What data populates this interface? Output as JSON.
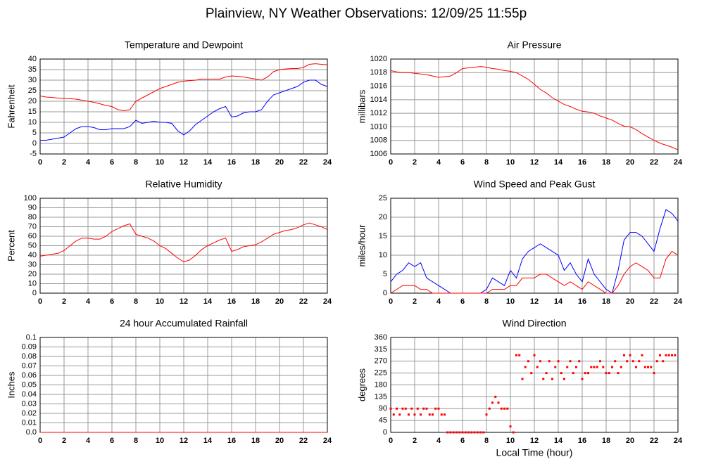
{
  "title": "Plainview, NY Weather Observations: 12/09/25 11:55p",
  "chart_data": [
    {
      "type": "line",
      "title": "Temperature and Dewpoint",
      "ylabel": "Fahrenheit",
      "x": [
        0,
        0.5,
        1,
        1.5,
        2,
        2.5,
        3,
        3.5,
        4,
        4.5,
        5,
        5.5,
        6,
        6.5,
        7,
        7.5,
        8,
        8.5,
        9,
        9.5,
        10,
        10.5,
        11,
        11.5,
        12,
        12.5,
        13,
        13.5,
        14,
        14.5,
        15,
        15.5,
        16,
        16.5,
        17,
        17.5,
        18,
        18.5,
        19,
        19.5,
        20,
        20.5,
        21,
        21.5,
        22,
        22.5,
        23,
        23.5,
        24
      ],
      "series": [
        {
          "color": "#ff0000",
          "values": [
            22.5,
            22,
            21.8,
            21.5,
            21.3,
            21.2,
            21,
            20.5,
            20,
            19.5,
            18.8,
            18,
            17.5,
            16,
            15.5,
            16,
            20,
            21.5,
            23,
            24.5,
            26,
            27,
            28,
            29,
            29.5,
            29.8,
            30,
            30.5,
            30.5,
            30.5,
            30.5,
            31.5,
            32,
            31.8,
            31.5,
            31,
            30.5,
            30,
            31.5,
            34,
            35,
            35.3,
            35.5,
            35.5,
            36,
            37.5,
            37.8,
            37.5,
            37.3
          ]
        },
        {
          "color": "#0000ff",
          "values": [
            1.5,
            1.5,
            2,
            2.5,
            3,
            5,
            7,
            8,
            8,
            7.5,
            6.5,
            6.5,
            7,
            7,
            7,
            8,
            11,
            9.5,
            10,
            10.5,
            10,
            10,
            9.5,
            6,
            4,
            6,
            9,
            11,
            13,
            15,
            16.5,
            17.5,
            12.5,
            13,
            14.5,
            15,
            15,
            16,
            20,
            23,
            24,
            25,
            26,
            27,
            29,
            30,
            30,
            28,
            27
          ]
        }
      ],
      "xlim": [
        0,
        24
      ],
      "xticks": [
        0,
        2,
        4,
        6,
        8,
        10,
        12,
        14,
        16,
        18,
        20,
        22,
        24
      ],
      "ylim": [
        -5,
        40
      ],
      "yticks": [
        -5,
        0,
        5,
        10,
        15,
        20,
        25,
        30,
        35,
        40
      ],
      "grid": true
    },
    {
      "type": "line",
      "title": "Air Pressure",
      "ylabel": "millibars",
      "x": [
        0,
        0.5,
        1,
        1.5,
        2,
        2.5,
        3,
        3.5,
        4,
        4.5,
        5,
        5.5,
        6,
        6.5,
        7,
        7.5,
        8,
        8.5,
        9,
        9.5,
        10,
        10.5,
        11,
        11.5,
        12,
        12.5,
        13,
        13.5,
        14,
        14.5,
        15,
        15.5,
        16,
        16.5,
        17,
        17.5,
        18,
        18.5,
        19,
        19.5,
        20,
        20.5,
        21,
        21.5,
        22,
        22.5,
        23,
        23.5,
        24
      ],
      "series": [
        {
          "color": "#ff0000",
          "values": [
            1018.3,
            1018.1,
            1018,
            1018,
            1017.9,
            1017.8,
            1017.7,
            1017.5,
            1017.3,
            1017.4,
            1017.5,
            1018,
            1018.6,
            1018.7,
            1018.8,
            1018.9,
            1018.8,
            1018.6,
            1018.5,
            1018.3,
            1018.2,
            1018,
            1017.5,
            1017,
            1016.3,
            1015.5,
            1015,
            1014.3,
            1013.8,
            1013.3,
            1013,
            1012.6,
            1012.3,
            1012.2,
            1012,
            1011.6,
            1011.3,
            1011,
            1010.5,
            1010.1,
            1010,
            1009.6,
            1009,
            1008.5,
            1008,
            1007.6,
            1007.3,
            1007,
            1006.6
          ]
        }
      ],
      "xlim": [
        0,
        24
      ],
      "xticks": [
        0,
        2,
        4,
        6,
        8,
        10,
        12,
        14,
        16,
        18,
        20,
        22,
        24
      ],
      "ylim": [
        1006,
        1020
      ],
      "yticks": [
        1006,
        1008,
        1010,
        1012,
        1014,
        1016,
        1018,
        1020
      ],
      "grid": true
    },
    {
      "type": "line",
      "title": "Relative Humidity",
      "ylabel": "Percent",
      "x": [
        0,
        0.5,
        1,
        1.5,
        2,
        2.5,
        3,
        3.5,
        4,
        4.5,
        5,
        5.5,
        6,
        6.5,
        7,
        7.5,
        8,
        8.5,
        9,
        9.5,
        10,
        10.5,
        11,
        11.5,
        12,
        12.5,
        13,
        13.5,
        14,
        14.5,
        15,
        15.5,
        16,
        16.5,
        17,
        17.5,
        18,
        18.5,
        19,
        19.5,
        20,
        20.5,
        21,
        21.5,
        22,
        22.5,
        23,
        23.5,
        24
      ],
      "series": [
        {
          "color": "#ff0000",
          "values": [
            39,
            40,
            41,
            42,
            45,
            50,
            55,
            58,
            58,
            57,
            57,
            60,
            65,
            68,
            71,
            73,
            62,
            60,
            58,
            55,
            50,
            47,
            42,
            37,
            33,
            35,
            40,
            46,
            50,
            53,
            56,
            58,
            44,
            46,
            49,
            50,
            51,
            54,
            58,
            62,
            64,
            66,
            67,
            69,
            72,
            74,
            72,
            70,
            67
          ]
        }
      ],
      "xlim": [
        0,
        24
      ],
      "xticks": [
        0,
        2,
        4,
        6,
        8,
        10,
        12,
        14,
        16,
        18,
        20,
        22,
        24
      ],
      "ylim": [
        0,
        100
      ],
      "yticks": [
        0,
        10,
        20,
        30,
        40,
        50,
        60,
        70,
        80,
        90,
        100
      ],
      "grid": true
    },
    {
      "type": "line",
      "title": "Wind Speed and Peak Gust",
      "ylabel": "miles/hour",
      "x": [
        0,
        0.5,
        1,
        1.5,
        2,
        2.5,
        3,
        3.5,
        4,
        4.5,
        5,
        5.5,
        6,
        6.5,
        7,
        7.5,
        8,
        8.5,
        9,
        9.5,
        10,
        10.5,
        11,
        11.5,
        12,
        12.5,
        13,
        13.5,
        14,
        14.5,
        15,
        15.5,
        16,
        16.5,
        17,
        17.5,
        18,
        18.5,
        19,
        19.5,
        20,
        20.5,
        21,
        21.5,
        22,
        22.5,
        23,
        23.5,
        24
      ],
      "series": [
        {
          "color": "#0000ff",
          "values": [
            3,
            5,
            6,
            8,
            7,
            8,
            4,
            3,
            2,
            1,
            0,
            0,
            0,
            0,
            0,
            0,
            1,
            4,
            3,
            2,
            6,
            4,
            9,
            11,
            12,
            13,
            12,
            11,
            10,
            6,
            8,
            5,
            3,
            9,
            5,
            3,
            1,
            0,
            6,
            14,
            16,
            16,
            15,
            13,
            11,
            17,
            22,
            21,
            19
          ]
        },
        {
          "color": "#ff0000",
          "values": [
            0,
            1,
            2,
            2,
            2,
            1,
            1,
            0,
            0,
            0,
            0,
            0,
            0,
            0,
            0,
            0,
            0,
            1,
            1,
            1,
            2,
            2,
            4,
            4,
            4,
            5,
            5,
            4,
            3,
            2,
            3,
            2,
            1,
            3,
            2,
            1,
            0,
            0,
            2,
            5,
            7,
            8,
            7,
            6,
            4,
            4,
            9,
            11,
            10
          ]
        }
      ],
      "xlim": [
        0,
        24
      ],
      "xticks": [
        0,
        2,
        4,
        6,
        8,
        10,
        12,
        14,
        16,
        18,
        20,
        22,
        24
      ],
      "ylim": [
        0,
        25
      ],
      "yticks": [
        0,
        5,
        10,
        15,
        20,
        25
      ],
      "grid": true
    },
    {
      "type": "line",
      "title": "24 hour Accumulated Rainfall",
      "ylabel": "Inches",
      "x": [
        0,
        24
      ],
      "series": [
        {
          "color": "#ff0000",
          "values": [
            0,
            0
          ]
        }
      ],
      "xlim": [
        0,
        24
      ],
      "xticks": [
        0,
        2,
        4,
        6,
        8,
        10,
        12,
        14,
        16,
        18,
        20,
        22,
        24
      ],
      "ylim": [
        0,
        0.1
      ],
      "yticks": [
        {
          "value": 0,
          "label": "0.0"
        },
        0.01,
        0.02,
        0.03,
        0.04,
        0.05,
        0.06,
        0.07,
        0.08,
        0.09,
        0.1
      ],
      "grid": true
    },
    {
      "type": "scatter",
      "title": "Wind Direction",
      "ylabel": "degrees",
      "xlabel": "Local Time (hour)",
      "x": [
        0,
        0.25,
        0.5,
        0.75,
        1,
        1.25,
        1.5,
        1.75,
        2,
        2.25,
        2.5,
        2.75,
        3,
        3.25,
        3.5,
        3.75,
        4,
        4.25,
        4.5,
        4.75,
        5,
        5.25,
        5.5,
        5.75,
        6,
        6.25,
        6.5,
        6.75,
        7,
        7.25,
        7.5,
        7.75,
        8,
        8.25,
        8.5,
        8.75,
        9,
        9.25,
        9.5,
        9.75,
        10,
        10.25,
        10.5,
        10.75,
        11,
        11.25,
        11.5,
        11.75,
        12,
        12.25,
        12.5,
        12.75,
        13,
        13.25,
        13.5,
        13.75,
        14,
        14.25,
        14.5,
        14.75,
        15,
        15.25,
        15.5,
        15.75,
        16,
        16.25,
        16.5,
        16.75,
        17,
        17.25,
        17.5,
        17.75,
        18,
        18.25,
        18.5,
        18.75,
        19,
        19.25,
        19.5,
        19.75,
        20,
        20.25,
        20.5,
        20.75,
        21,
        21.25,
        21.5,
        21.75,
        22,
        22.25,
        22.5,
        22.75,
        23,
        23.25,
        23.5,
        23.75
      ],
      "series": [
        {
          "color": "#ff0000",
          "values": [
            90,
            67.5,
            90,
            67.5,
            90,
            90,
            67.5,
            90,
            67.5,
            90,
            67.5,
            90,
            90,
            67.5,
            67.5,
            90,
            90,
            67.5,
            67.5,
            0,
            0,
            0,
            0,
            0,
            0,
            0,
            0,
            0,
            0,
            0,
            0,
            0,
            67.5,
            90,
            112.5,
            135,
            112.5,
            90,
            90,
            90,
            22.5,
            0,
            292.5,
            292.5,
            202.5,
            247.5,
            270,
            225,
            292.5,
            247.5,
            270,
            202.5,
            225,
            270,
            202.5,
            247.5,
            270,
            225,
            202.5,
            247.5,
            270,
            225,
            247.5,
            270,
            202.5,
            225,
            225,
            247.5,
            247.5,
            247.5,
            270,
            247.5,
            225,
            225,
            247.5,
            270,
            225,
            247.5,
            292.5,
            270,
            292.5,
            270,
            247.5,
            270,
            292.5,
            247.5,
            247.5,
            247.5,
            225,
            270,
            292.5,
            270,
            292.5,
            292.5,
            292.5,
            292.5
          ]
        }
      ],
      "xlim": [
        0,
        24
      ],
      "xticks": [
        0,
        2,
        4,
        6,
        8,
        10,
        12,
        14,
        16,
        18,
        20,
        22,
        24
      ],
      "ylim": [
        0,
        360
      ],
      "yticks": [
        0,
        45,
        90,
        135,
        180,
        225,
        270,
        315,
        360
      ],
      "grid": true
    }
  ]
}
